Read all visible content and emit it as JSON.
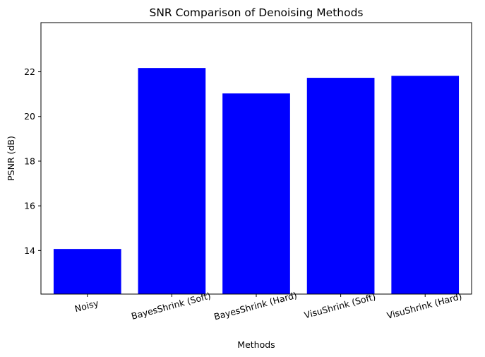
{
  "chart_data": {
    "type": "bar",
    "title": "SNR Comparison of Denoising Methods",
    "xlabel": "Methods",
    "ylabel": "PSNR (dB)",
    "categories": [
      "Noisy",
      "BayesShrink (Soft)",
      "BayesShrink (Hard)",
      "VisuShrink (Soft)",
      "VisuShrink (Hard)"
    ],
    "values": [
      14.07,
      22.17,
      21.03,
      21.73,
      21.82
    ],
    "ylim": [
      12.05,
      24.2
    ],
    "yticks": [
      14,
      16,
      18,
      20,
      22
    ],
    "x_tick_rotation_deg": 15,
    "bar_color": "#0000ff",
    "grid": false,
    "legend": "none"
  }
}
